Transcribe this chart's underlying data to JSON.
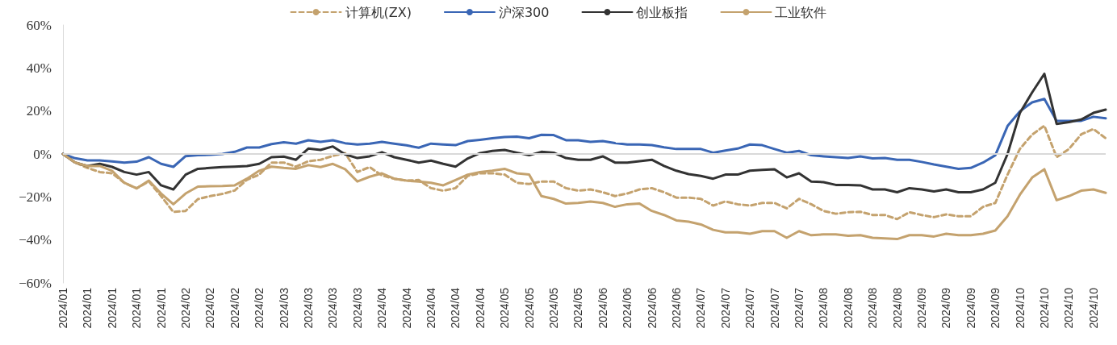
{
  "chart_data": {
    "type": "line",
    "categories": [
      "2024/01",
      null,
      "2024/01",
      null,
      "2024/01",
      null,
      "2024/01",
      null,
      "2024/01",
      null,
      "2024/02",
      null,
      "2024/02",
      null,
      "2024/02",
      null,
      "2024/02",
      null,
      "2024/03",
      null,
      "2024/03",
      null,
      "2024/03",
      null,
      "2024/03",
      null,
      "2024/04",
      null,
      "2024/04",
      null,
      "2024/04",
      null,
      "2024/04",
      null,
      "2024/04",
      null,
      "2024/05",
      null,
      "2024/05",
      null,
      "2024/05",
      null,
      "2024/05",
      null,
      "2024/06",
      null,
      "2024/06",
      null,
      "2024/06",
      null,
      "2024/06",
      null,
      "2024/07",
      null,
      "2024/07",
      null,
      "2024/07",
      null,
      "2024/07",
      null,
      "2024/07",
      null,
      "2024/08",
      null,
      "2024/08",
      null,
      "2024/08",
      null,
      "2024/08",
      null,
      "2024/09",
      null,
      "2024/09",
      null,
      "2024/09",
      null,
      "2024/09",
      null,
      "2024/10",
      null,
      "2024/10",
      null,
      "2024/10",
      null,
      "2024/10",
      null
    ],
    "series": [
      {
        "name": "计算机(ZX)",
        "color": "#c4a26e",
        "line_style": "dashed",
        "values": [
          0,
          -4,
          -6.5,
          -8.4,
          -9,
          -13.4,
          -16,
          -12.8,
          -19.6,
          -27,
          -26.5,
          -21,
          -19.6,
          -18.6,
          -17,
          -12,
          -9.6,
          -4,
          -4,
          -5.9,
          -3.4,
          -2.7,
          -0.9,
          0.4,
          -8.4,
          -6.1,
          -10,
          -11.5,
          -12.4,
          -12.1,
          -15.9,
          -17.1,
          -15.9,
          -10.2,
          -9,
          -9,
          -9.6,
          -13.4,
          -14,
          -12.8,
          -12.8,
          -15.9,
          -17.1,
          -16.5,
          -17.8,
          -19.6,
          -18.4,
          -16.5,
          -15.9,
          -17.8,
          -20.3,
          -20.3,
          -20.9,
          -24,
          -22.1,
          -23.4,
          -24,
          -22.8,
          -22.8,
          -25.3,
          -20.9,
          -23.4,
          -26.5,
          -27.8,
          -27.1,
          -26.9,
          -28.4,
          -28.4,
          -30.3,
          -27.1,
          -28.4,
          -29.4,
          -28.1,
          -29,
          -29,
          -24.6,
          -22.8,
          -9.6,
          2.3,
          9,
          13.1,
          -1.5,
          2.3,
          9.1,
          11.6,
          7.3
        ]
      },
      {
        "name": "沪深300",
        "color": "#3a66b5",
        "line_style": "solid",
        "values": [
          0,
          -2,
          -3,
          -3,
          -3.5,
          -4,
          -3.6,
          -1.5,
          -4.6,
          -6,
          -1,
          -0.6,
          -0.4,
          0,
          1,
          3,
          3,
          4.6,
          5.4,
          4.8,
          6.4,
          5.6,
          6.4,
          5,
          4.4,
          4.8,
          5.6,
          4.8,
          4,
          2.9,
          4.8,
          4.4,
          4.1,
          6,
          6.6,
          7.3,
          7.9,
          8.1,
          7.3,
          8.9,
          8.8,
          6.4,
          6.4,
          5.6,
          6,
          5.1,
          4.4,
          4.4,
          4.1,
          3.1,
          2.3,
          2.3,
          2.3,
          0.6,
          1.6,
          2.5,
          4.4,
          4.1,
          2.3,
          0.6,
          1.4,
          -0.6,
          -1.1,
          -1.5,
          -1.9,
          -1.1,
          -2.1,
          -1.9,
          -2.7,
          -2.7,
          -3.7,
          -4.9,
          -5.9,
          -6.9,
          -6.5,
          -4,
          -0.6,
          13,
          19.8,
          24,
          25.6,
          15.4,
          15.4,
          15.4,
          17.3,
          16.6
        ]
      },
      {
        "name": "创业板指",
        "color": "#333333",
        "line_style": "solid",
        "values": [
          0,
          -4,
          -5.6,
          -4.6,
          -6,
          -8.4,
          -9.6,
          -8.4,
          -14.6,
          -16.5,
          -9.6,
          -6.9,
          -6.5,
          -6.1,
          -5.9,
          -5.6,
          -4.6,
          -1.5,
          -1.2,
          -2.7,
          2.5,
          1.9,
          3.5,
          -0.2,
          -1.9,
          -1.1,
          0.8,
          -1.5,
          -2.7,
          -4,
          -3.1,
          -4.6,
          -5.9,
          -2.1,
          0.4,
          1.4,
          1.9,
          0.6,
          -0.6,
          1,
          0.6,
          -1.9,
          -2.7,
          -2.7,
          -1.1,
          -4,
          -4,
          -3.4,
          -2.7,
          -5.6,
          -7.8,
          -9.4,
          -10.2,
          -11.5,
          -9.6,
          -9.6,
          -7.8,
          -7.4,
          -7.1,
          -10.9,
          -9,
          -12.8,
          -13.1,
          -14.4,
          -14.4,
          -14.6,
          -16.5,
          -16.5,
          -17.8,
          -15.9,
          -16.5,
          -17.4,
          -16.5,
          -17.8,
          -17.8,
          -16.5,
          -13.4,
          0,
          19,
          28.6,
          37.3,
          14,
          14.8,
          16,
          19.1,
          20.6
        ]
      },
      {
        "name": "工业软件",
        "color": "#c4a26e",
        "line_style": "solid",
        "values": [
          0,
          -4,
          -5.6,
          -5.6,
          -7.8,
          -13.4,
          -16,
          -12.4,
          -18.4,
          -23.4,
          -18.4,
          -15.2,
          -15,
          -14.9,
          -14.6,
          -11.5,
          -7.8,
          -5.9,
          -6.5,
          -6.9,
          -5.2,
          -6.1,
          -4.6,
          -7.1,
          -12.8,
          -10.6,
          -9,
          -11.5,
          -12.4,
          -12.8,
          -13.4,
          -14.6,
          -12.1,
          -9.6,
          -8.4,
          -7.8,
          -6.9,
          -9,
          -9.6,
          -19.6,
          -20.9,
          -23.1,
          -22.8,
          -22.1,
          -22.8,
          -24.6,
          -23.4,
          -23.1,
          -26.5,
          -28.4,
          -30.9,
          -31.5,
          -32.8,
          -35.3,
          -36.5,
          -36.5,
          -37.1,
          -35.9,
          -35.9,
          -39,
          -35.9,
          -37.8,
          -37.4,
          -37.4,
          -38.1,
          -37.8,
          -39,
          -39.3,
          -39.6,
          -37.8,
          -37.8,
          -38.4,
          -37.1,
          -37.8,
          -37.8,
          -37.1,
          -35.6,
          -29,
          -19,
          -11,
          -7.1,
          -21.5,
          -19.6,
          -17.1,
          -16.5,
          -18.1
        ]
      }
    ],
    "ylim": [
      -60,
      60
    ],
    "yticks": [
      {
        "value": -60,
        "label": "−60%"
      },
      {
        "value": -40,
        "label": "−40%"
      },
      {
        "value": -20,
        "label": "−20%"
      },
      {
        "value": 0,
        "label": "0%"
      },
      {
        "value": 20,
        "label": "20%"
      },
      {
        "value": 40,
        "label": "40%"
      },
      {
        "value": 60,
        "label": "60%"
      }
    ],
    "ref_lines": [
      {
        "axis": "y",
        "value": 0,
        "color": "#d9d9d9"
      }
    ],
    "grid": false,
    "legend": "top",
    "marker": "none"
  }
}
